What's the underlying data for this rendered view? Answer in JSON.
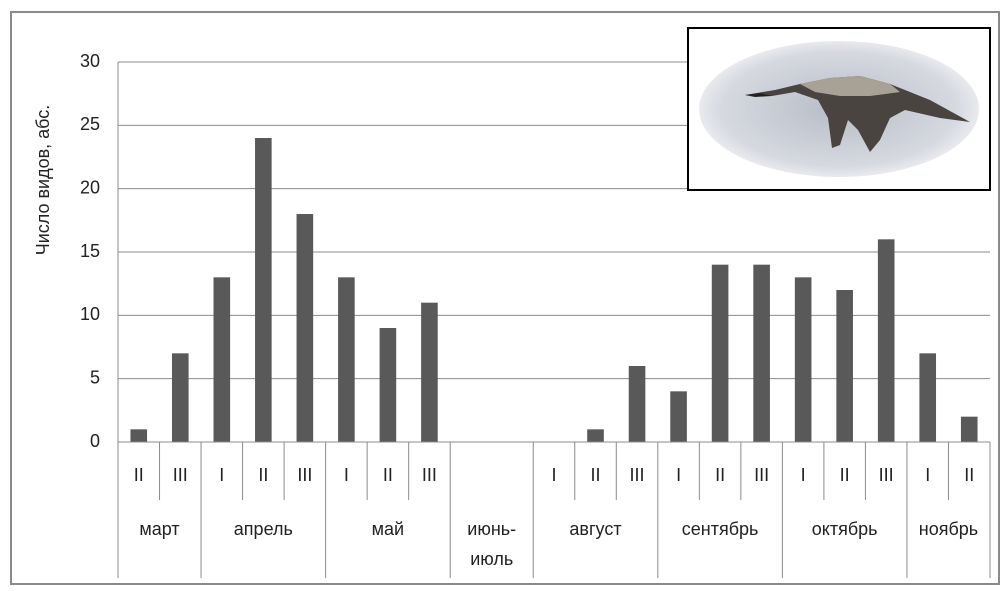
{
  "chart_data": {
    "type": "bar",
    "y_label": "Число видов, абс.",
    "color": "#595959",
    "ylim": [
      0,
      30
    ],
    "yticks": [
      0,
      5,
      10,
      15,
      20,
      25,
      30
    ],
    "grid": true,
    "groups": [
      {
        "name": "март",
        "categories": [
          "II",
          "III"
        ],
        "values": [
          1,
          7
        ]
      },
      {
        "name": "апрель",
        "categories": [
          "I",
          "II",
          "III"
        ],
        "values": [
          13,
          24,
          18
        ]
      },
      {
        "name": "май",
        "categories": [
          "I",
          "II",
          "III"
        ],
        "values": [
          13,
          9,
          11
        ]
      },
      {
        "name": "июнь-\nиюль",
        "categories": [
          null,
          null
        ],
        "values": [
          null,
          null
        ]
      },
      {
        "name": "август",
        "categories": [
          "I",
          "II",
          "III"
        ],
        "values": [
          0,
          1,
          6
        ]
      },
      {
        "name": "сентябрь",
        "categories": [
          "I",
          "II",
          "III"
        ],
        "values": [
          4,
          14,
          14
        ]
      },
      {
        "name": "октябрь",
        "categories": [
          "I",
          "II",
          "III"
        ],
        "values": [
          13,
          12,
          16
        ]
      },
      {
        "name": "ноябрь",
        "categories": [
          "I",
          "II"
        ],
        "values": [
          7,
          2
        ]
      }
    ]
  }
}
